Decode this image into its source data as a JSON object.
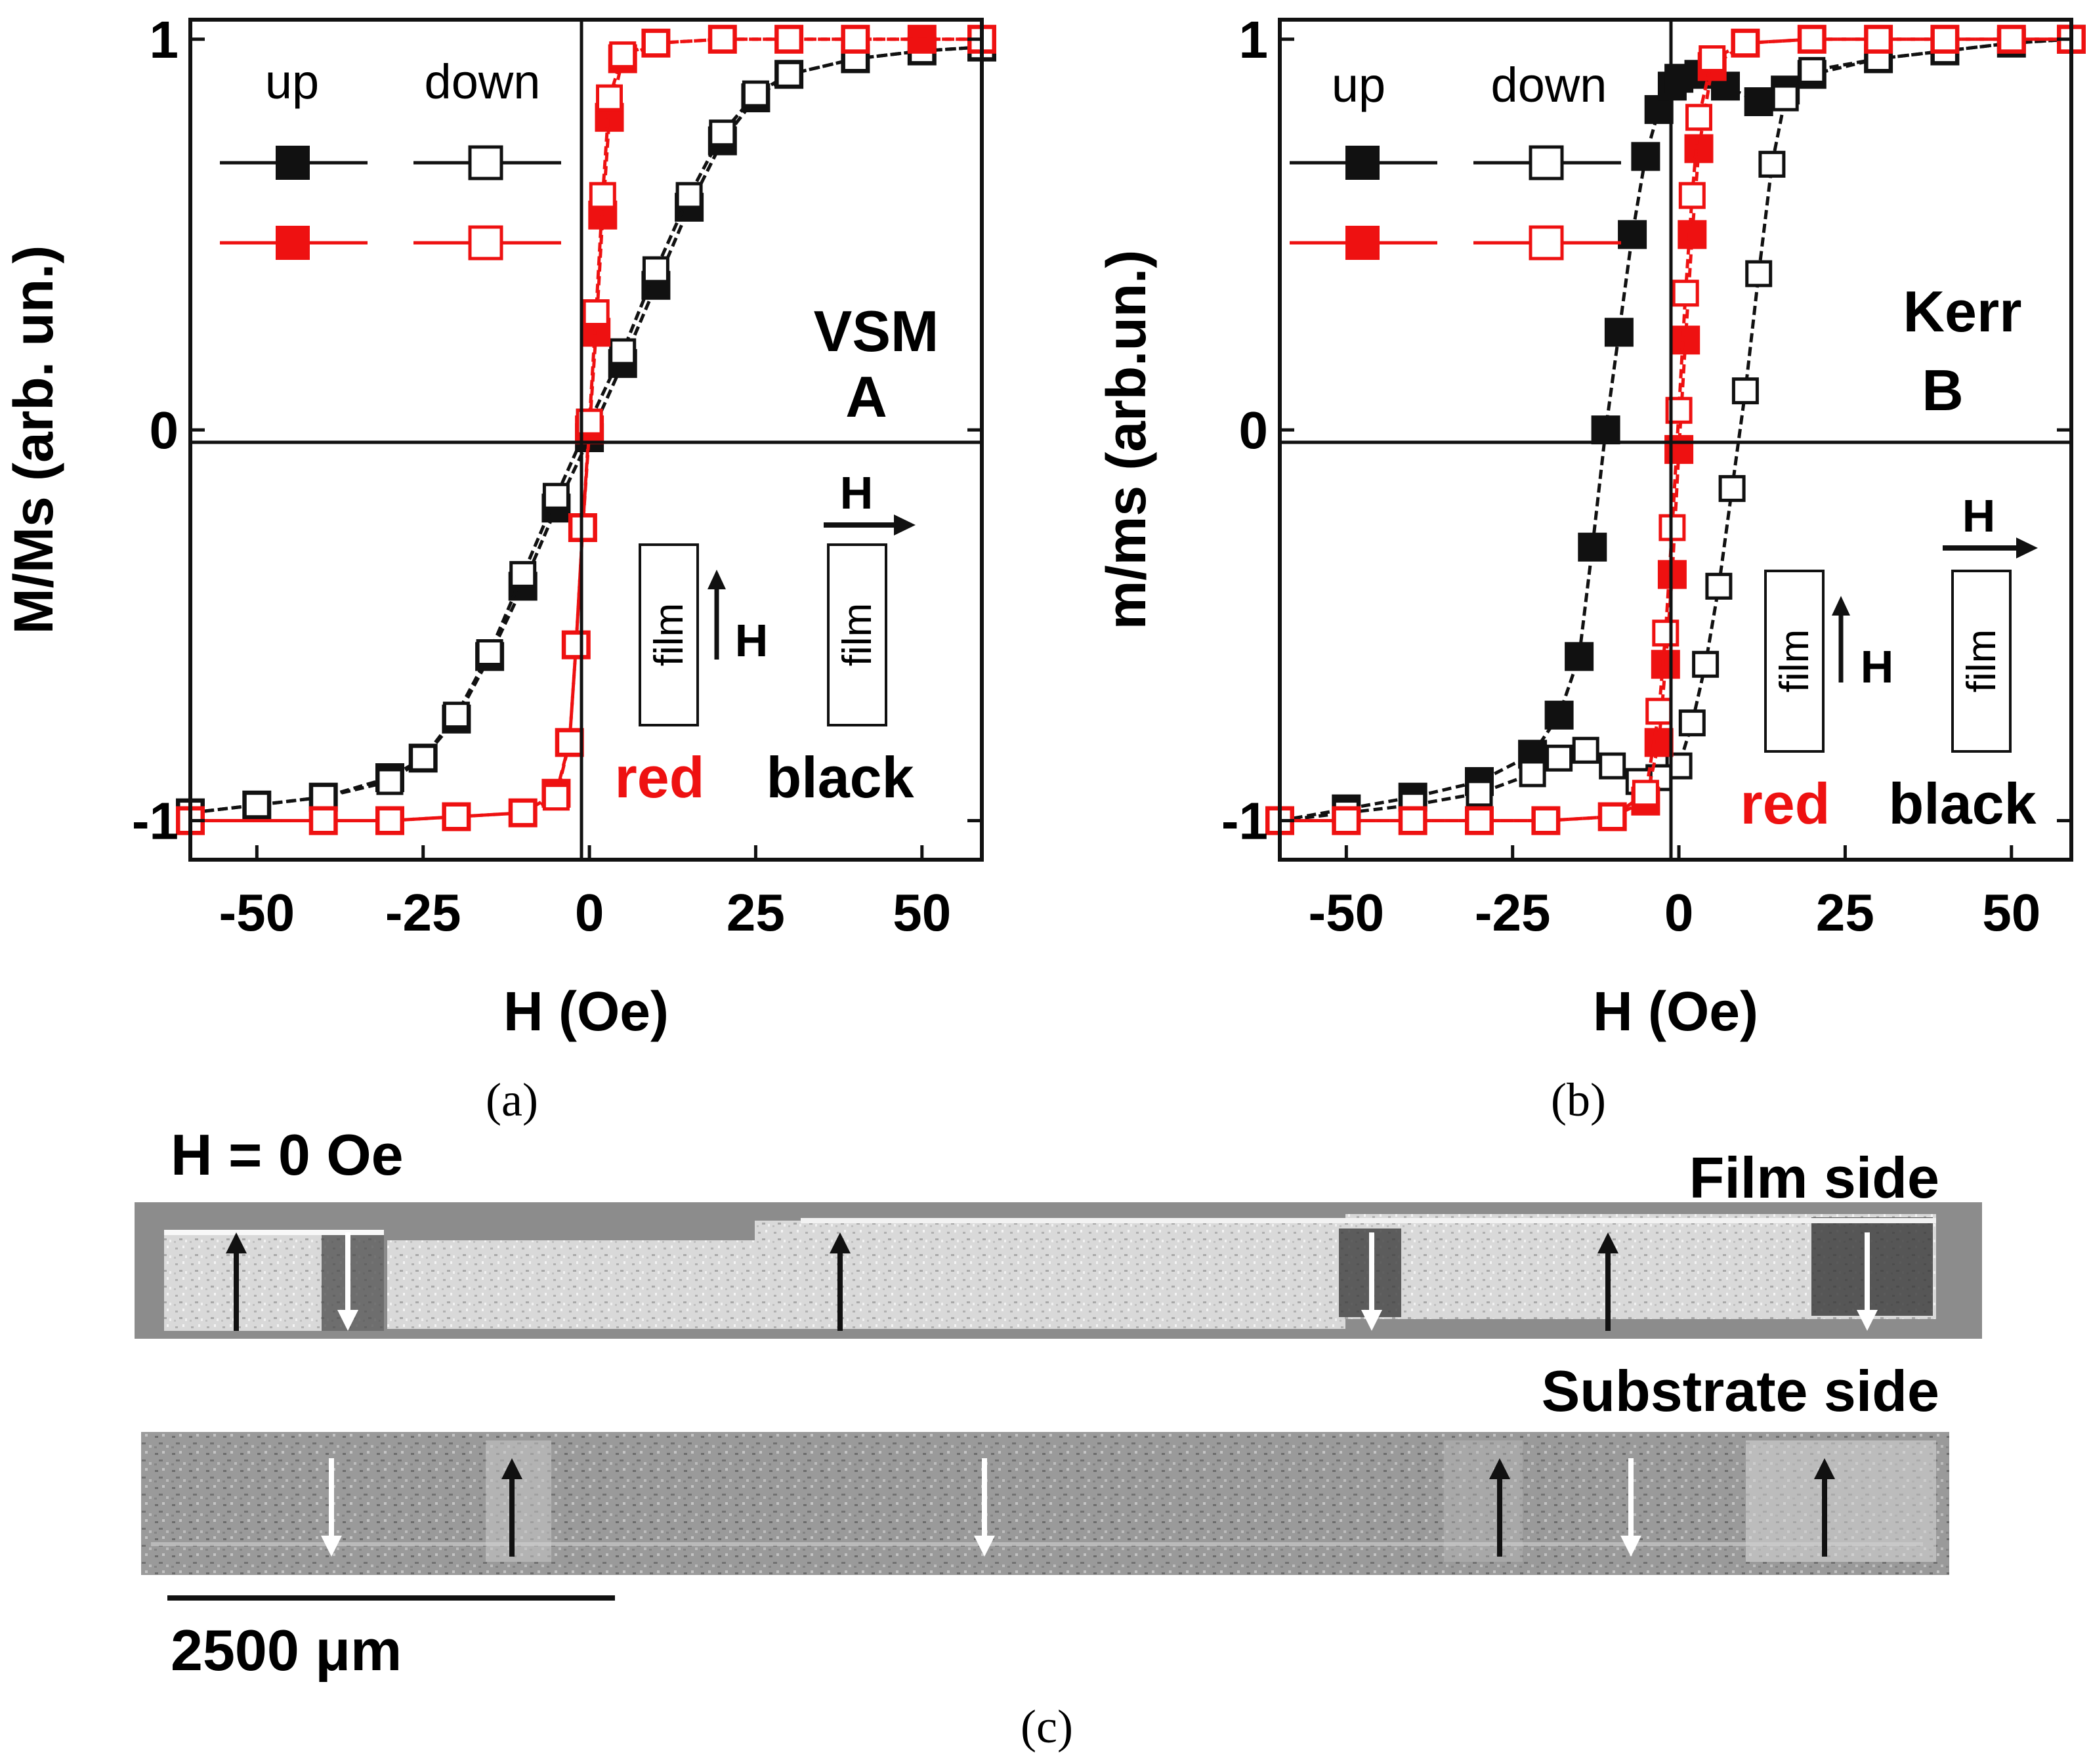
{
  "colors": {
    "black": "#111111",
    "red": "#ee1111",
    "image_bg": "#8c8c8c",
    "image_light": "#dcdcdc"
  },
  "icons": [
    "arrow-up-icon",
    "arrow-down-icon",
    "arrow-right-icon"
  ],
  "chart_data": [
    {
      "id": "a",
      "type": "line",
      "caption": "(a)",
      "method_label": "VSM",
      "panel_label": "A",
      "xlabel": "H (Oe)",
      "ylabel": "M/Ms (arb. un.)",
      "xlim": [
        -60,
        59
      ],
      "ylim": [
        -1.1,
        1.05
      ],
      "xticks": [
        "-50",
        "-25",
        "0",
        "25",
        "50"
      ],
      "xtick_values": [
        -50,
        -25,
        0,
        25,
        50
      ],
      "yticks": [
        "1",
        "0",
        "-1"
      ],
      "ytick_values": [
        1,
        0,
        -1
      ],
      "legend": {
        "col_up": "up",
        "col_down": "down"
      },
      "geometry_labels": {
        "film": "film",
        "field": "H",
        "red": "red",
        "black": "black"
      },
      "series": [
        {
          "name": "black up",
          "color": "black",
          "filled": true,
          "x": [
            -60,
            -50,
            -40,
            -30,
            -25,
            -20,
            -15,
            -10,
            -5,
            0,
            5,
            10,
            15,
            20,
            25,
            30,
            40,
            50,
            59
          ],
          "y": [
            -0.98,
            -0.96,
            -0.94,
            -0.89,
            -0.84,
            -0.74,
            -0.58,
            -0.4,
            -0.2,
            -0.02,
            0.17,
            0.37,
            0.57,
            0.74,
            0.85,
            0.91,
            0.95,
            0.97,
            0.98
          ]
        },
        {
          "name": "black down",
          "color": "black",
          "filled": false,
          "x": [
            59,
            50,
            40,
            30,
            25,
            20,
            15,
            10,
            5,
            0,
            -5,
            -10,
            -15,
            -20,
            -25,
            -30,
            -40,
            -50,
            -60
          ],
          "y": [
            0.98,
            0.97,
            0.95,
            0.91,
            0.86,
            0.76,
            0.6,
            0.41,
            0.2,
            0.02,
            -0.17,
            -0.37,
            -0.57,
            -0.73,
            -0.84,
            -0.9,
            -0.94,
            -0.96,
            -0.98
          ]
        },
        {
          "name": "red up",
          "color": "red",
          "filled": true,
          "x": [
            -60,
            -40,
            -30,
            -20,
            -10,
            -5,
            -3,
            -2,
            -1,
            0,
            1,
            2,
            3,
            5,
            10,
            20,
            30,
            40,
            50,
            59
          ],
          "y": [
            -1.0,
            -1.0,
            -1.0,
            -0.99,
            -0.98,
            -0.93,
            -0.8,
            -0.55,
            -0.25,
            0.0,
            0.25,
            0.55,
            0.8,
            0.95,
            0.99,
            1.0,
            1.0,
            1.0,
            1.0,
            1.0
          ]
        },
        {
          "name": "red down",
          "color": "red",
          "filled": false,
          "x": [
            59,
            40,
            30,
            20,
            10,
            5,
            3,
            2,
            1,
            0,
            -1,
            -2,
            -3,
            -5,
            -10,
            -20,
            -30,
            -40,
            -60
          ],
          "y": [
            1.0,
            1.0,
            1.0,
            1.0,
            0.99,
            0.96,
            0.85,
            0.6,
            0.3,
            0.02,
            -0.25,
            -0.55,
            -0.8,
            -0.94,
            -0.98,
            -0.99,
            -1.0,
            -1.0,
            -1.0
          ]
        }
      ]
    },
    {
      "id": "b",
      "type": "line",
      "caption": "(b)",
      "method_label": "Kerr",
      "panel_label": "B",
      "xlabel": "H (Oe)",
      "ylabel": "m/ms (arb.un.)",
      "xlim": [
        -60,
        59
      ],
      "ylim": [
        -1.1,
        1.05
      ],
      "xticks": [
        "-50",
        "-25",
        "0",
        "25",
        "50"
      ],
      "xtick_values": [
        -50,
        -25,
        0,
        25,
        50
      ],
      "yticks": [
        "1",
        "0",
        "-1"
      ],
      "ytick_values": [
        1,
        0,
        -1
      ],
      "legend": {
        "col_up": "up",
        "col_down": "down"
      },
      "geometry_labels": {
        "film": "film",
        "field": "H",
        "red": "red",
        "black": "black"
      },
      "series": [
        {
          "name": "black up",
          "color": "black",
          "filled": true,
          "x": [
            -60,
            -50,
            -40,
            -30,
            -22,
            -18,
            -15,
            -13,
            -11,
            -9,
            -7,
            -5,
            -3,
            -1,
            0,
            3,
            7,
            12,
            16,
            20,
            30,
            40,
            50,
            59
          ],
          "y": [
            -1.0,
            -0.97,
            -0.94,
            -0.9,
            -0.83,
            -0.73,
            -0.58,
            -0.3,
            0.0,
            0.25,
            0.5,
            0.7,
            0.82,
            0.88,
            0.9,
            0.91,
            0.88,
            0.84,
            0.87,
            0.91,
            0.95,
            0.97,
            0.99,
            1.0
          ]
        },
        {
          "name": "black down",
          "color": "black",
          "filled": false,
          "x": [
            59,
            50,
            40,
            30,
            20,
            16,
            14,
            12,
            10,
            8,
            6,
            4,
            2,
            0,
            -3,
            -6,
            -10,
            -14,
            -18,
            -22,
            -30,
            -40,
            -50,
            -60
          ],
          "y": [
            1.0,
            0.99,
            0.97,
            0.95,
            0.92,
            0.85,
            0.68,
            0.4,
            0.1,
            -0.15,
            -0.4,
            -0.6,
            -0.75,
            -0.86,
            -0.89,
            -0.9,
            -0.86,
            -0.82,
            -0.84,
            -0.88,
            -0.93,
            -0.96,
            -0.98,
            -1.0
          ]
        },
        {
          "name": "red up",
          "color": "red",
          "filled": true,
          "x": [
            -60,
            -50,
            -40,
            -30,
            -20,
            -10,
            -5,
            -3,
            -2,
            -1,
            0,
            1,
            2,
            3,
            5,
            10,
            20,
            30,
            40,
            50,
            59
          ],
          "y": [
            -1.0,
            -1.0,
            -1.0,
            -1.0,
            -1.0,
            -0.99,
            -0.95,
            -0.8,
            -0.6,
            -0.37,
            -0.05,
            0.23,
            0.5,
            0.72,
            0.93,
            0.99,
            1.0,
            1.0,
            1.0,
            1.0,
            1.0
          ]
        },
        {
          "name": "red down",
          "color": "red",
          "filled": false,
          "x": [
            59,
            50,
            40,
            30,
            20,
            10,
            5,
            3,
            2,
            1,
            0,
            -1,
            -2,
            -3,
            -5,
            -10,
            -20,
            -30,
            -40,
            -50,
            -60
          ],
          "y": [
            1.0,
            1.0,
            1.0,
            1.0,
            1.0,
            0.99,
            0.95,
            0.8,
            0.6,
            0.35,
            0.05,
            -0.25,
            -0.52,
            -0.72,
            -0.93,
            -0.99,
            -1.0,
            -1.0,
            -1.0,
            -1.0,
            -1.0
          ]
        }
      ]
    }
  ],
  "panel_c": {
    "caption": "(c)",
    "field_label": "H = 0 Oe",
    "film_side_label": "Film side",
    "substrate_side_label": "Substrate side",
    "scale_bar_label": "2500 μm",
    "film_side_arrows": [
      "up",
      "down",
      "up",
      "down",
      "up",
      "down"
    ],
    "substrate_side_arrows": [
      "down",
      "up",
      "down",
      "up",
      "down",
      "up"
    ]
  }
}
